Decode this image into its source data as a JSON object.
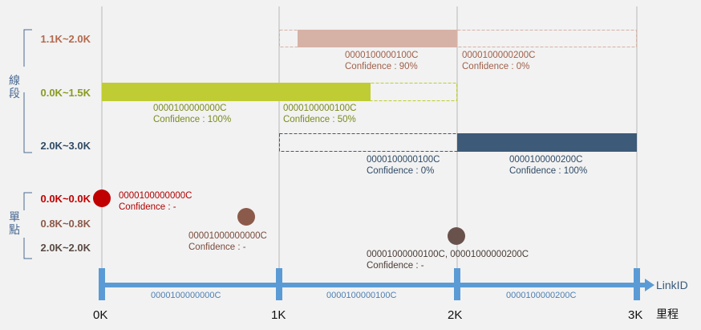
{
  "groups": {
    "segments_label": "線段",
    "points_label": "單點"
  },
  "rows": [
    {
      "label": "1.1K~2.0K",
      "color": "#b46a4f"
    },
    {
      "label": "0.0K~1.5K",
      "color": "#8a9a22"
    },
    {
      "label": "2.0K~3.0K",
      "color": "#2f4a66"
    },
    {
      "label": "0.0K~0.0K",
      "color": "#c00000"
    },
    {
      "label": "0.8K~0.8K",
      "color": "#8c5a4a"
    },
    {
      "label": "2.0K~2.0K",
      "color": "#5a4a44"
    }
  ],
  "segments": [
    {
      "id": "0000100000100C",
      "confidence": "Confidence : 90%",
      "color": "#d6b2a6",
      "text_color": "#a0604a"
    },
    {
      "id": "0000100000200C",
      "confidence": "Confidence : 0%",
      "color": "#d6b2a6",
      "text_color": "#a0604a"
    },
    {
      "id": "0000100000000C",
      "confidence": "Confidence : 100%",
      "color": "#bfcc34",
      "text_color": "#7a8a1e"
    },
    {
      "id": "0000100000100C",
      "confidence": "Confidence : 50%",
      "color": "#bfcc34",
      "text_color": "#7a8a1e"
    },
    {
      "id": "0000100000100C",
      "confidence": "Confidence : 0%",
      "color": "#3d5a78",
      "text_color": "#2f4a66"
    },
    {
      "id": "0000100000200C",
      "confidence": "Confidence : 100%",
      "color": "#3d5a78",
      "text_color": "#2f4a66"
    }
  ],
  "points": [
    {
      "id": "0000100000000C",
      "confidence": "Confidence : -",
      "color": "#c00000",
      "text_color": "#b00000"
    },
    {
      "id": "00001000000000C",
      "confidence": "Confidence : -",
      "color": "#8c5a4a",
      "text_color": "#7a4a3c"
    },
    {
      "id": "00001000000100C, 00001000000200C",
      "confidence": "Confidence : -",
      "color": "#6a524c",
      "text_color": "#4a3c36"
    }
  ],
  "axis": {
    "name": "LinkID",
    "km_label": "里程",
    "ticks": [
      "0K",
      "1K",
      "2K",
      "3K"
    ],
    "links": [
      "0000100000000C",
      "0000100000100C",
      "0000100000200C"
    ],
    "color": "#5b9bd5"
  }
}
